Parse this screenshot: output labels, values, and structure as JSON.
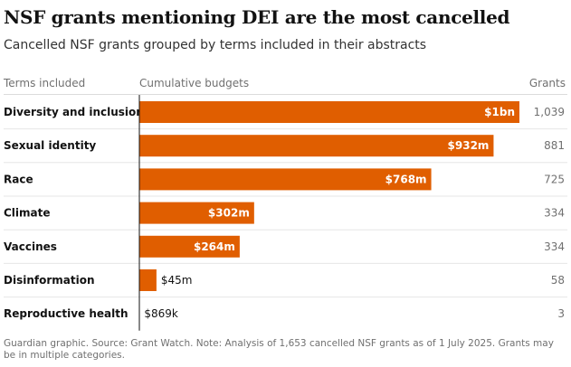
{
  "title": "NSF grants mentioning DEI are the most cancelled",
  "subtitle": "Cancelled NSF grants grouped by terms included in their abstracts",
  "headers": {
    "terms": "Terms included",
    "budgets": "Cumulative budgets",
    "grants": "Grants"
  },
  "footnote": "Guardian graphic. Source: Grant Watch. Note: Analysis of 1,653 cancelled NSF grants as of 1 July 2025. Grants may be in multiple categories.",
  "colors": {
    "bar": "#e05e00",
    "axis": "#121212"
  },
  "chart_data": {
    "type": "bar",
    "orientation": "horizontal",
    "categories": [
      "Diversity and inclusion",
      "Sexual identity",
      "Race",
      "Climate",
      "Vaccines",
      "Disinformation",
      "Reproductive health"
    ],
    "series": [
      {
        "name": "Cumulative budgets",
        "values": [
          1000,
          932,
          768,
          302,
          264,
          45,
          0.869
        ],
        "unit": "$m",
        "labels": [
          "$1bn",
          "$932m",
          "$768m",
          "$302m",
          "$264m",
          "$45m",
          "$869k"
        ]
      }
    ],
    "grants": [
      "1,039",
      "881",
      "725",
      "334",
      "334",
      "58",
      "3"
    ],
    "xlim": [
      0,
      1000
    ]
  }
}
